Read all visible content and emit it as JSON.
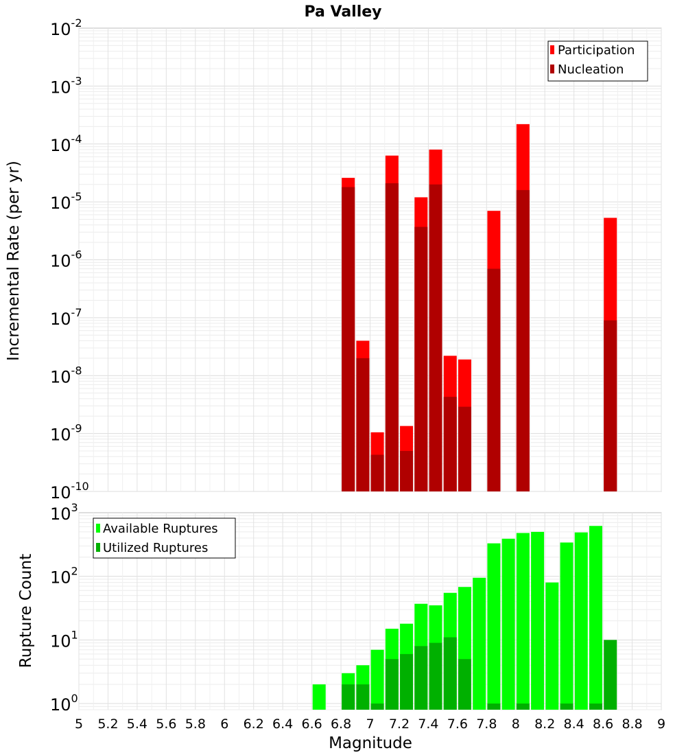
{
  "title": "Pa Valley",
  "xlabel": "Magnitude",
  "x_ticks": [
    "5",
    "5.2",
    "5.4",
    "5.6",
    "5.8",
    "6",
    "6.2",
    "6.4",
    "6.6",
    "6.8",
    "7",
    "7.2",
    "7.4",
    "7.6",
    "7.8",
    "8",
    "8.2",
    "8.4",
    "8.6",
    "8.8",
    "9"
  ],
  "chart_data": [
    {
      "type": "bar",
      "title": "Pa Valley",
      "ylabel": "Incremental Rate (per yr)",
      "yscale": "log",
      "ylim": [
        1e-10,
        0.01
      ],
      "xlim": [
        5,
        9
      ],
      "grid": true,
      "legend_position": "top-right",
      "y_ticks": [
        {
          "base": "10",
          "exp": "-10"
        },
        {
          "base": "10",
          "exp": "-9"
        },
        {
          "base": "10",
          "exp": "-8"
        },
        {
          "base": "10",
          "exp": "-7"
        },
        {
          "base": "10",
          "exp": "-6"
        },
        {
          "base": "10",
          "exp": "-5"
        },
        {
          "base": "10",
          "exp": "-4"
        },
        {
          "base": "10",
          "exp": "-3"
        },
        {
          "base": "10",
          "exp": "-2"
        }
      ],
      "series": [
        {
          "name": "Participation",
          "color": "#ff0000",
          "x": [
            6.85,
            6.95,
            7.05,
            7.15,
            7.25,
            7.35,
            7.45,
            7.55,
            7.65,
            7.85,
            8.05,
            8.65
          ],
          "values": [
            2.6e-05,
            4e-08,
            1.05e-09,
            6.3e-05,
            1.35e-09,
            1.2e-05,
            8e-05,
            2.2e-08,
            1.9e-08,
            7e-06,
            0.00022,
            5.3e-06
          ]
        },
        {
          "name": "Nucleation",
          "color": "#b00000",
          "x": [
            6.85,
            6.95,
            7.05,
            7.15,
            7.25,
            7.35,
            7.45,
            7.55,
            7.65,
            7.85,
            8.05,
            8.65
          ],
          "values": [
            1.8e-05,
            2e-08,
            4.3e-10,
            2.1e-05,
            5e-10,
            3.7e-06,
            2e-05,
            4.3e-09,
            2.9e-09,
            7e-07,
            1.6e-05,
            9e-08
          ]
        }
      ]
    },
    {
      "type": "bar",
      "ylabel": "Rupture Count",
      "yscale": "log",
      "ylim": [
        0.8,
        1000
      ],
      "xlim": [
        5,
        9
      ],
      "grid": true,
      "legend_position": "top-left",
      "y_ticks": [
        {
          "base": "10",
          "exp": "0"
        },
        {
          "base": "10",
          "exp": "1"
        },
        {
          "base": "10",
          "exp": "2"
        },
        {
          "base": "10",
          "exp": "3"
        }
      ],
      "series": [
        {
          "name": "Available Ruptures",
          "color": "#00ff00",
          "x": [
            6.65,
            6.85,
            6.95,
            7.05,
            7.15,
            7.25,
            7.35,
            7.45,
            7.55,
            7.65,
            7.75,
            7.85,
            7.95,
            8.05,
            8.15,
            8.25,
            8.35,
            8.45,
            8.55
          ],
          "values": [
            2,
            3,
            4,
            7,
            15,
            18,
            37,
            35,
            55,
            68,
            95,
            330,
            390,
            480,
            500,
            80,
            340,
            490,
            620
          ]
        },
        {
          "name": "Utilized Ruptures",
          "color": "#00b000",
          "x": [
            6.85,
            6.95,
            7.05,
            7.15,
            7.25,
            7.35,
            7.45,
            7.55,
            7.65,
            7.85,
            8.05,
            8.35,
            8.55,
            8.65
          ],
          "values": [
            2,
            2,
            1,
            5,
            6,
            8,
            9,
            11,
            5,
            1,
            1,
            1,
            1,
            10
          ]
        }
      ]
    }
  ]
}
